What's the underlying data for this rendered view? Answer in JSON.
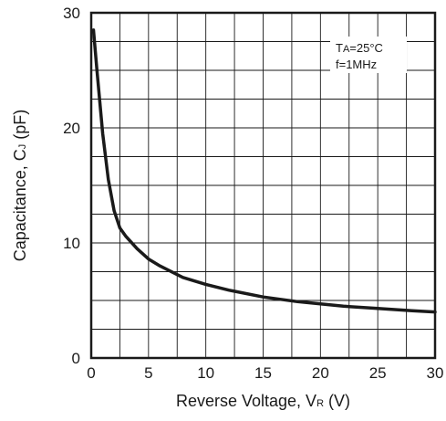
{
  "chart_data": {
    "type": "line",
    "title": "",
    "xlabel": {
      "main": "Reverse Voltage, V",
      "sub": "R",
      "unit": " (V)"
    },
    "ylabel": {
      "main": "Capacitance, C",
      "sub": "J",
      "unit": " (pF)"
    },
    "xlim": [
      0,
      30
    ],
    "ylim": [
      0,
      30
    ],
    "x_ticks": [
      0,
      5,
      10,
      15,
      20,
      25,
      30
    ],
    "y_ticks": [
      0,
      10,
      20,
      30
    ],
    "grid": true,
    "annotation": {
      "line1_main": "T",
      "line1_sub": "A",
      "line1_rest": "=25°C",
      "line2": "f=1MHz"
    },
    "series": [
      {
        "x": [
          0.2,
          0.5,
          1.0,
          1.5,
          2.0,
          2.5,
          3.0,
          4.0,
          5.0,
          6.0,
          8.0,
          10.0,
          12.0,
          15.0,
          18.0,
          20.0,
          22.0,
          25.0,
          28.0,
          30.0
        ],
        "y": [
          28.5,
          25.0,
          19.5,
          15.5,
          12.8,
          11.3,
          10.6,
          9.5,
          8.6,
          8.0,
          7.0,
          6.4,
          5.9,
          5.3,
          4.9,
          4.7,
          4.5,
          4.3,
          4.1,
          4.0
        ]
      }
    ],
    "colors": {
      "line": "#1a1a1a",
      "grid": "#1a1a1a",
      "frame": "#1a1a1a"
    }
  }
}
